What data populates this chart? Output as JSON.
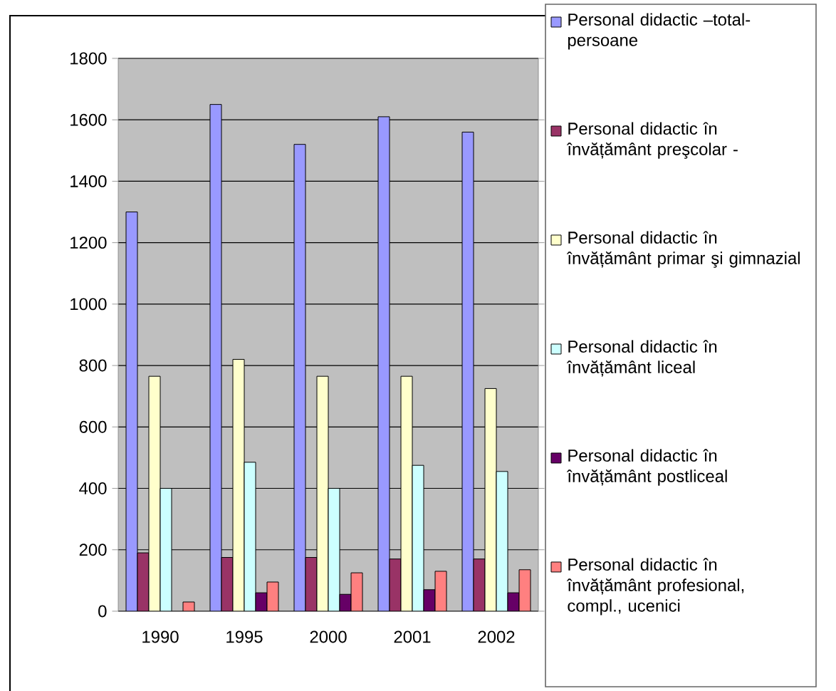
{
  "chart_data": {
    "type": "bar",
    "categories": [
      "1990",
      "1995",
      "2000",
      "2001",
      "2002"
    ],
    "series": [
      {
        "name": "Personal didactic –total-persoane",
        "color": "#9999ff",
        "values": [
          1300,
          1650,
          1520,
          1610,
          1560
        ]
      },
      {
        "name": "Personal didactic în învățământ preşcolar -",
        "color": "#993366",
        "values": [
          190,
          175,
          175,
          170,
          170
        ]
      },
      {
        "name": "Personal didactic în învățământ primar şi gimnazial",
        "color": "#ffffcc",
        "values": [
          765,
          820,
          765,
          765,
          725
        ]
      },
      {
        "name": "Personal didactic în învățământ liceal",
        "color": "#ccffff",
        "values": [
          400,
          485,
          400,
          475,
          455
        ]
      },
      {
        "name": "Personal didactic în învățământ postliceal",
        "color": "#660066",
        "values": [
          null,
          60,
          55,
          70,
          60
        ]
      },
      {
        "name": "Personal didactic în învățământ profesional, compl., ucenici",
        "color": "#ff8080",
        "values": [
          30,
          95,
          125,
          130,
          135
        ]
      }
    ],
    "ylim": [
      0,
      1800
    ],
    "yticks": [
      0,
      200,
      400,
      600,
      800,
      1000,
      1200,
      1400,
      1600,
      1800
    ],
    "grid": "y",
    "legend": "right"
  }
}
